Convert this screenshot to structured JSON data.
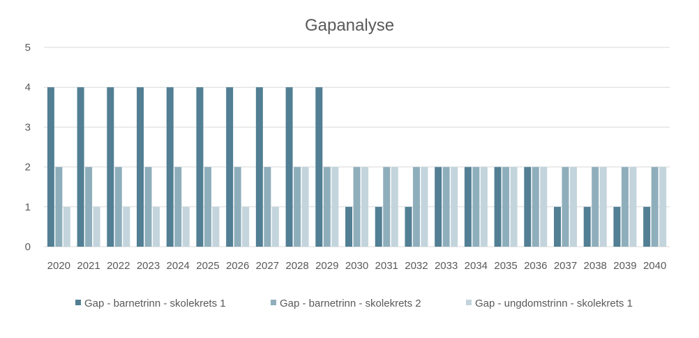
{
  "chart_data": {
    "type": "bar",
    "title": "Gapanalyse",
    "xlabel": "",
    "ylabel": "",
    "ylim": [
      0,
      5
    ],
    "yticks": [
      0,
      1,
      2,
      3,
      4,
      5
    ],
    "grid": true,
    "legend_position": "bottom",
    "categories": [
      "2020",
      "2021",
      "2022",
      "2023",
      "2024",
      "2025",
      "2026",
      "2027",
      "2028",
      "2029",
      "2030",
      "2031",
      "2032",
      "2033",
      "2034",
      "2035",
      "2036",
      "2037",
      "2038",
      "2039",
      "2040"
    ],
    "series": [
      {
        "name": "Gap - barnetrinn - skolekrets 1",
        "color": "#527f94",
        "values": [
          4,
          4,
          4,
          4,
          4,
          4,
          4,
          4,
          4,
          4,
          1,
          1,
          1,
          2,
          2,
          2,
          2,
          1,
          1,
          1,
          1
        ]
      },
      {
        "name": "Gap - barnetrinn - skolekrets 2",
        "color": "#8faebb",
        "values": [
          2,
          2,
          2,
          2,
          2,
          2,
          2,
          2,
          2,
          2,
          2,
          2,
          2,
          2,
          2,
          2,
          2,
          2,
          2,
          2,
          2
        ]
      },
      {
        "name": "Gap - ungdomstrinn - skolekrets 1",
        "color": "#c3d4dc",
        "values": [
          1,
          1,
          1,
          1,
          1,
          1,
          1,
          1,
          2,
          2,
          2,
          2,
          2,
          2,
          2,
          2,
          2,
          2,
          2,
          2,
          2
        ]
      }
    ]
  }
}
